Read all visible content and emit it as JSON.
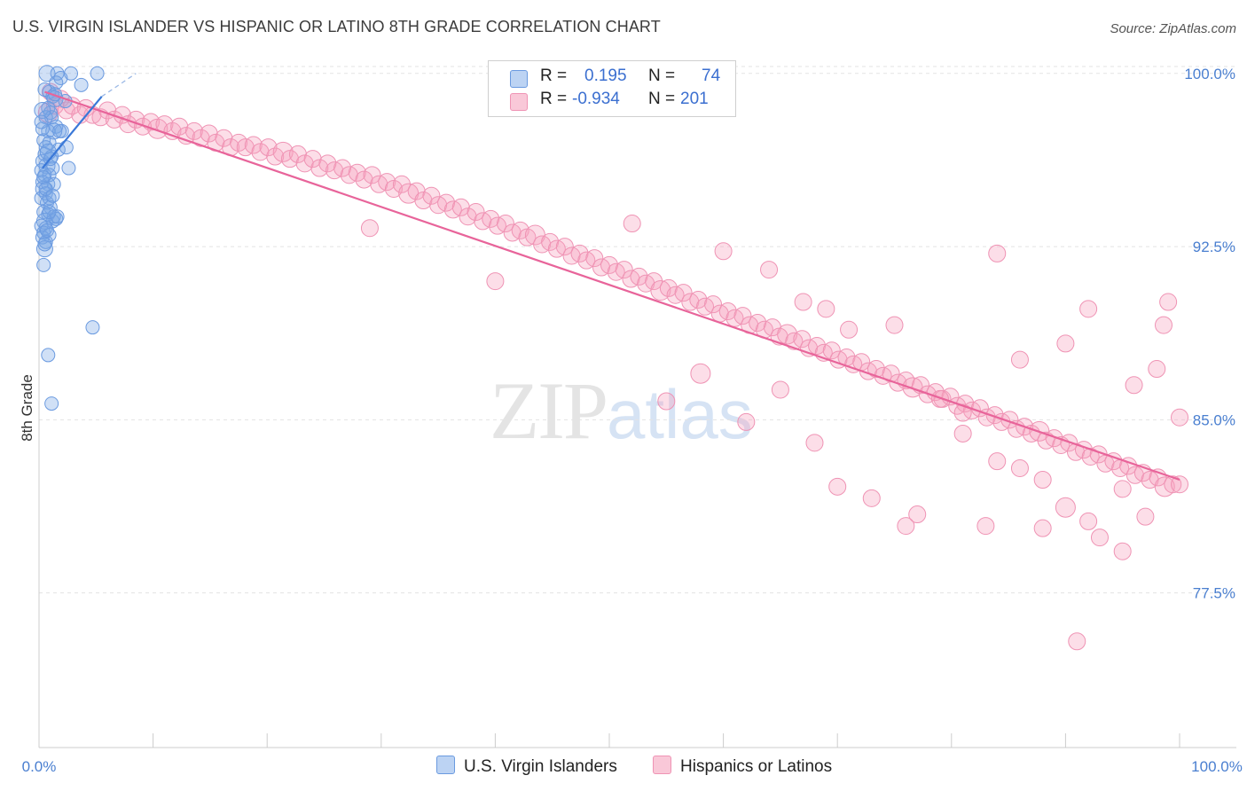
{
  "title": "U.S. VIRGIN ISLANDER VS HISPANIC OR LATINO 8TH GRADE CORRELATION CHART",
  "source": "Source: ZipAtlas.com",
  "watermark": {
    "zip": "ZIP",
    "atlas": "atlas"
  },
  "legend": {
    "row1": {
      "r_label": "R =",
      "r_value": "0.195",
      "n_label": "N =",
      "n_value": "74"
    },
    "row2": {
      "r_label": "R =",
      "r_value": "-0.934",
      "n_label": "N =",
      "n_value": "201"
    }
  },
  "bottom_legend": {
    "series1": "U.S. Virgin Islanders",
    "series2": "Hispanics or Latinos"
  },
  "colors": {
    "blue_fill": "rgba(120,165,230,0.35)",
    "blue_stroke": "#6a9ae0",
    "blue_line": "#3a78d8",
    "pink_fill": "rgba(245,160,190,0.35)",
    "pink_stroke": "#ef93b4",
    "pink_line": "#e8649a",
    "tick_color": "#4a7fd0",
    "grid": "#e3e3e3"
  },
  "chart_data": {
    "type": "scatter",
    "ylabel": "8th Grade",
    "xlim": [
      0,
      100
    ],
    "ylim": [
      70.8,
      100.3
    ],
    "y_ticks": [
      100.0,
      92.5,
      85.0,
      77.5
    ],
    "y_tick_labels": [
      "100.0%",
      "92.5%",
      "85.0%",
      "77.5%"
    ],
    "x_tick_labels": [
      "0.0%",
      "100.0%"
    ],
    "series": [
      {
        "name": "U.S. Virgin Islanders",
        "R": 0.195,
        "N": 74,
        "trend": {
          "x": [
            0.3,
            5.5
          ],
          "y": [
            95.9,
            99.0
          ]
        },
        "trend_ext": {
          "x": [
            5.5,
            8.5
          ],
          "y": [
            99.0,
            100.0
          ]
        },
        "points": [
          [
            0.7,
            100.0
          ],
          [
            1.6,
            100.0
          ],
          [
            1.9,
            99.8
          ],
          [
            2.8,
            100.0
          ],
          [
            5.1,
            100.0
          ],
          [
            1.5,
            99.6
          ],
          [
            3.7,
            99.5
          ],
          [
            0.9,
            99.2
          ],
          [
            1.2,
            99.0
          ],
          [
            1.4,
            98.9
          ],
          [
            2.3,
            98.8
          ],
          [
            0.8,
            98.5
          ],
          [
            1.0,
            98.3
          ],
          [
            0.6,
            98.1
          ],
          [
            1.1,
            98.1
          ],
          [
            1.5,
            97.7
          ],
          [
            0.8,
            97.5
          ],
          [
            2.0,
            97.5
          ],
          [
            1.3,
            97.5
          ],
          [
            0.4,
            97.1
          ],
          [
            0.9,
            97.0
          ],
          [
            0.6,
            96.8
          ],
          [
            1.7,
            96.7
          ],
          [
            0.5,
            96.5
          ],
          [
            1.1,
            96.4
          ],
          [
            2.4,
            96.8
          ],
          [
            0.3,
            96.2
          ],
          [
            0.7,
            96.0
          ],
          [
            1.2,
            95.9
          ],
          [
            0.2,
            95.8
          ],
          [
            0.5,
            95.6
          ],
          [
            0.9,
            95.6
          ],
          [
            2.6,
            95.9
          ],
          [
            0.3,
            95.3
          ],
          [
            0.8,
            95.2
          ],
          [
            1.3,
            95.2
          ],
          [
            0.4,
            95.0
          ],
          [
            0.6,
            94.8
          ],
          [
            0.2,
            94.6
          ],
          [
            0.7,
            94.4
          ],
          [
            0.9,
            94.6
          ],
          [
            1.0,
            94.2
          ],
          [
            0.4,
            94.0
          ],
          [
            0.8,
            93.9
          ],
          [
            1.3,
            93.8
          ],
          [
            0.5,
            93.6
          ],
          [
            1.2,
            93.6
          ],
          [
            0.2,
            93.4
          ],
          [
            0.6,
            93.3
          ],
          [
            1.5,
            93.7
          ],
          [
            0.4,
            93.1
          ],
          [
            0.9,
            93.0
          ],
          [
            0.3,
            92.9
          ],
          [
            0.6,
            92.7
          ],
          [
            0.5,
            92.4
          ],
          [
            0.4,
            91.7
          ],
          [
            4.7,
            89.0
          ],
          [
            0.8,
            87.8
          ],
          [
            1.1,
            85.7
          ],
          [
            0.3,
            97.6
          ],
          [
            1.8,
            97.5
          ],
          [
            0.5,
            99.3
          ],
          [
            1.4,
            99.1
          ],
          [
            0.3,
            98.4
          ],
          [
            1.0,
            96.3
          ],
          [
            0.4,
            95.5
          ],
          [
            0.7,
            93.2
          ],
          [
            1.6,
            93.8
          ],
          [
            0.2,
            97.9
          ],
          [
            0.9,
            94.0
          ],
          [
            0.5,
            92.6
          ],
          [
            0.6,
            95.0
          ],
          [
            0.8,
            96.6
          ],
          [
            1.2,
            94.7
          ]
        ]
      },
      {
        "name": "Hispanics or Latinos",
        "R": -0.934,
        "N": 201,
        "trend": {
          "x": [
            0.5,
            100.0
          ],
          "y": [
            99.2,
            82.4
          ]
        },
        "points": [
          [
            0.8,
            98.3
          ],
          [
            1.0,
            99.2
          ],
          [
            1.4,
            98.6
          ],
          [
            1.9,
            98.9
          ],
          [
            2.4,
            98.4
          ],
          [
            2.9,
            98.6
          ],
          [
            3.6,
            98.2
          ],
          [
            4.1,
            98.5
          ],
          [
            4.7,
            98.2
          ],
          [
            5.4,
            98.1
          ],
          [
            6.0,
            98.4
          ],
          [
            6.6,
            98.0
          ],
          [
            7.3,
            98.2
          ],
          [
            7.8,
            97.8
          ],
          [
            8.5,
            98.0
          ],
          [
            9.1,
            97.7
          ],
          [
            9.8,
            97.9
          ],
          [
            10.4,
            97.6
          ],
          [
            11.0,
            97.8
          ],
          [
            11.7,
            97.5
          ],
          [
            12.3,
            97.7
          ],
          [
            12.9,
            97.3
          ],
          [
            13.6,
            97.5
          ],
          [
            14.2,
            97.2
          ],
          [
            14.9,
            97.4
          ],
          [
            15.5,
            97.0
          ],
          [
            16.2,
            97.2
          ],
          [
            16.8,
            96.8
          ],
          [
            17.5,
            97.0
          ],
          [
            18.1,
            96.8
          ],
          [
            18.8,
            96.9
          ],
          [
            19.4,
            96.6
          ],
          [
            20.1,
            96.8
          ],
          [
            20.7,
            96.4
          ],
          [
            21.4,
            96.6
          ],
          [
            22.0,
            96.3
          ],
          [
            22.7,
            96.5
          ],
          [
            23.3,
            96.1
          ],
          [
            24.0,
            96.3
          ],
          [
            24.6,
            95.9
          ],
          [
            25.3,
            96.1
          ],
          [
            25.9,
            95.8
          ],
          [
            26.6,
            95.9
          ],
          [
            27.2,
            95.6
          ],
          [
            27.9,
            95.7
          ],
          [
            28.5,
            95.4
          ],
          [
            29.2,
            95.6
          ],
          [
            29.8,
            95.2
          ],
          [
            30.5,
            95.3
          ],
          [
            31.1,
            95.0
          ],
          [
            31.8,
            95.2
          ],
          [
            32.4,
            94.8
          ],
          [
            33.1,
            94.9
          ],
          [
            33.7,
            94.5
          ],
          [
            34.4,
            94.7
          ],
          [
            35.0,
            94.3
          ],
          [
            35.7,
            94.4
          ],
          [
            36.3,
            94.1
          ],
          [
            37.0,
            94.2
          ],
          [
            37.6,
            93.8
          ],
          [
            38.3,
            94.0
          ],
          [
            38.9,
            93.6
          ],
          [
            39.6,
            93.7
          ],
          [
            40.2,
            93.4
          ],
          [
            40.9,
            93.5
          ],
          [
            41.5,
            93.1
          ],
          [
            42.2,
            93.2
          ],
          [
            42.8,
            92.9
          ],
          [
            43.5,
            93.0
          ],
          [
            44.1,
            92.6
          ],
          [
            44.8,
            92.7
          ],
          [
            45.4,
            92.4
          ],
          [
            46.1,
            92.5
          ],
          [
            46.7,
            92.1
          ],
          [
            47.4,
            92.2
          ],
          [
            48.0,
            91.9
          ],
          [
            48.7,
            92.0
          ],
          [
            49.3,
            91.6
          ],
          [
            50.0,
            91.7
          ],
          [
            50.6,
            91.4
          ],
          [
            51.3,
            91.5
          ],
          [
            51.9,
            91.1
          ],
          [
            52.6,
            91.2
          ],
          [
            53.2,
            90.9
          ],
          [
            53.9,
            91.0
          ],
          [
            54.5,
            90.6
          ],
          [
            55.2,
            90.7
          ],
          [
            55.8,
            90.4
          ],
          [
            56.5,
            90.5
          ],
          [
            57.1,
            90.1
          ],
          [
            57.8,
            90.2
          ],
          [
            58.4,
            89.9
          ],
          [
            59.1,
            90.0
          ],
          [
            59.7,
            89.6
          ],
          [
            60.4,
            89.7
          ],
          [
            61.0,
            89.4
          ],
          [
            61.7,
            89.5
          ],
          [
            62.3,
            89.1
          ],
          [
            63.0,
            89.2
          ],
          [
            63.6,
            88.9
          ],
          [
            64.3,
            89.0
          ],
          [
            64.9,
            88.6
          ],
          [
            65.6,
            88.7
          ],
          [
            66.2,
            88.4
          ],
          [
            66.9,
            88.5
          ],
          [
            67.5,
            88.1
          ],
          [
            68.2,
            88.2
          ],
          [
            68.8,
            87.9
          ],
          [
            69.5,
            88.0
          ],
          [
            70.1,
            87.6
          ],
          [
            70.8,
            87.7
          ],
          [
            71.4,
            87.4
          ],
          [
            72.1,
            87.5
          ],
          [
            72.7,
            87.1
          ],
          [
            73.4,
            87.2
          ],
          [
            74.0,
            86.9
          ],
          [
            74.7,
            87.0
          ],
          [
            75.3,
            86.6
          ],
          [
            76.0,
            86.7
          ],
          [
            76.6,
            86.4
          ],
          [
            77.3,
            86.5
          ],
          [
            77.9,
            86.1
          ],
          [
            78.6,
            86.2
          ],
          [
            79.2,
            85.9
          ],
          [
            79.9,
            86.0
          ],
          [
            80.5,
            85.6
          ],
          [
            81.2,
            85.7
          ],
          [
            81.8,
            85.4
          ],
          [
            82.5,
            85.5
          ],
          [
            83.1,
            85.1
          ],
          [
            83.8,
            85.2
          ],
          [
            84.4,
            84.9
          ],
          [
            85.1,
            85.0
          ],
          [
            85.7,
            84.6
          ],
          [
            86.4,
            84.7
          ],
          [
            87.0,
            84.4
          ],
          [
            87.7,
            84.5
          ],
          [
            88.3,
            84.1
          ],
          [
            89.0,
            84.2
          ],
          [
            89.6,
            83.9
          ],
          [
            90.3,
            84.0
          ],
          [
            90.9,
            83.6
          ],
          [
            91.6,
            83.7
          ],
          [
            92.2,
            83.4
          ],
          [
            92.9,
            83.5
          ],
          [
            93.5,
            83.1
          ],
          [
            94.2,
            83.2
          ],
          [
            94.8,
            82.9
          ],
          [
            95.5,
            83.0
          ],
          [
            96.1,
            82.6
          ],
          [
            96.8,
            82.7
          ],
          [
            97.4,
            82.4
          ],
          [
            98.1,
            82.5
          ],
          [
            98.7,
            82.1
          ],
          [
            99.4,
            82.2
          ],
          [
            100.0,
            82.2
          ],
          [
            29.0,
            93.3
          ],
          [
            40.0,
            91.0
          ],
          [
            52.0,
            93.5
          ],
          [
            60.0,
            92.3
          ],
          [
            64.0,
            91.5
          ],
          [
            67.0,
            90.1
          ],
          [
            69.0,
            89.8
          ],
          [
            71.0,
            88.9
          ],
          [
            75.0,
            89.1
          ],
          [
            79.0,
            85.9
          ],
          [
            81.0,
            84.4
          ],
          [
            84.0,
            83.2
          ],
          [
            86.0,
            82.9
          ],
          [
            88.0,
            82.4
          ],
          [
            90.0,
            81.2
          ],
          [
            92.0,
            80.6
          ],
          [
            93.0,
            79.9
          ],
          [
            95.0,
            79.3
          ],
          [
            97.0,
            80.8
          ],
          [
            99.0,
            90.1
          ],
          [
            98.6,
            89.1
          ],
          [
            98.0,
            87.2
          ],
          [
            95.0,
            82.0
          ],
          [
            91.0,
            75.4
          ],
          [
            88.0,
            80.3
          ],
          [
            83.0,
            80.4
          ],
          [
            76.0,
            80.4
          ],
          [
            73.0,
            81.6
          ],
          [
            70.0,
            82.1
          ],
          [
            65.0,
            86.3
          ],
          [
            62.0,
            84.9
          ],
          [
            58.0,
            87.0
          ],
          [
            55.0,
            85.8
          ],
          [
            84.0,
            92.2
          ],
          [
            86.0,
            87.6
          ],
          [
            90.0,
            88.3
          ],
          [
            92.0,
            89.8
          ],
          [
            96.0,
            86.5
          ],
          [
            100.0,
            85.1
          ],
          [
            77.0,
            80.9
          ],
          [
            81.0,
            85.3
          ],
          [
            68.0,
            84.0
          ]
        ]
      }
    ]
  }
}
